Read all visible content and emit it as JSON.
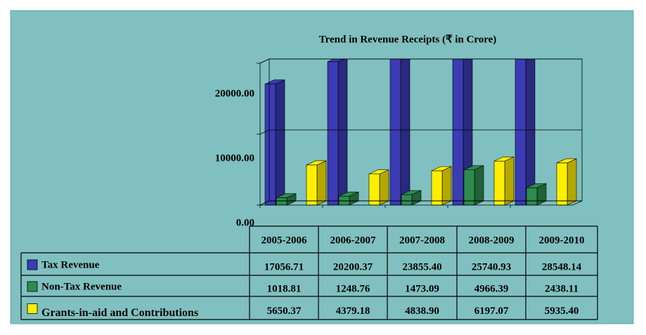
{
  "chart_data": {
    "type": "bar3d",
    "title": "Trend in Revenue Receipts (₹ in Crore)",
    "categories": [
      "2005-2006",
      "2006-2007",
      "2007-2008",
      "2008-2009",
      "2009-2010"
    ],
    "series": [
      {
        "name": "Tax Revenue",
        "color": "#3b3bb5",
        "values": [
          17056.71,
          20200.37,
          23855.4,
          25740.93,
          28548.14
        ],
        "value_labels": [
          "17056.71",
          "20200.37",
          "23855.40",
          "25740.93",
          "28548.14"
        ]
      },
      {
        "name": "Non-Tax Revenue",
        "color": "#2e8b4e",
        "values": [
          1018.81,
          1248.76,
          1473.09,
          4966.39,
          2438.11
        ],
        "value_labels": [
          "1018.81",
          "1248.76",
          "1473.09",
          "4966.39",
          "2438.11"
        ]
      },
      {
        "name": "Grants-in-aid and Contributions",
        "color": "#ffee00",
        "values": [
          5650.37,
          4379.18,
          4838.9,
          6197.07,
          5935.4
        ],
        "value_labels": [
          "5650.37",
          "4379.18",
          "4838.90",
          "6197.07",
          "5935.40"
        ]
      }
    ],
    "ylim": [
      0,
      20000
    ],
    "yticks": [
      {
        "value": 0,
        "label": "0.00"
      },
      {
        "value": 10000,
        "label": "10000.00"
      },
      {
        "value": 20000,
        "label": "20000.00"
      }
    ],
    "grid": true
  }
}
